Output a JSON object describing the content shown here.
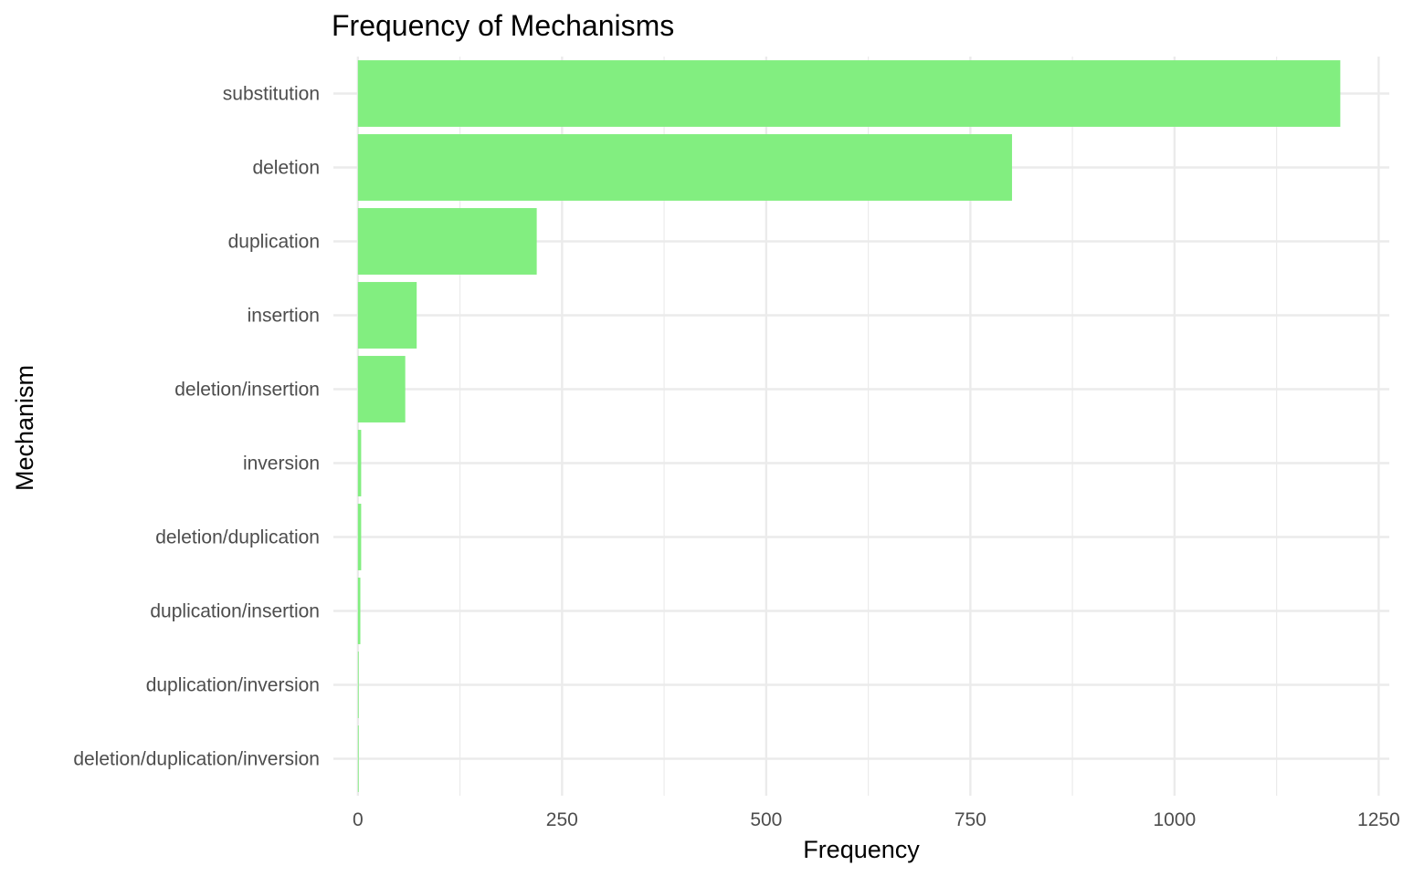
{
  "chart_data": {
    "type": "bar",
    "orientation": "horizontal",
    "title": "Frequency of Mechanisms",
    "xlabel": "Frequency",
    "ylabel": "Mechanism",
    "categories": [
      "substitution",
      "deletion",
      "duplication",
      "insertion",
      "deletion/insertion",
      "inversion",
      "deletion/duplication",
      "duplication/insertion",
      "duplication/inversion",
      "deletion/duplication/inversion"
    ],
    "values": [
      1203,
      801,
      219,
      72,
      58,
      4,
      4,
      3,
      1,
      1
    ],
    "xlim": [
      -30,
      1263
    ],
    "x_ticks": [
      0,
      250,
      500,
      750,
      1000,
      1250
    ],
    "x_tick_labels": [
      "0",
      "250",
      "500",
      "750",
      "1000",
      "1250"
    ],
    "grid": true,
    "legend": "none",
    "bar_color": "#82ee80",
    "gridline_color": "#ebebeb"
  }
}
